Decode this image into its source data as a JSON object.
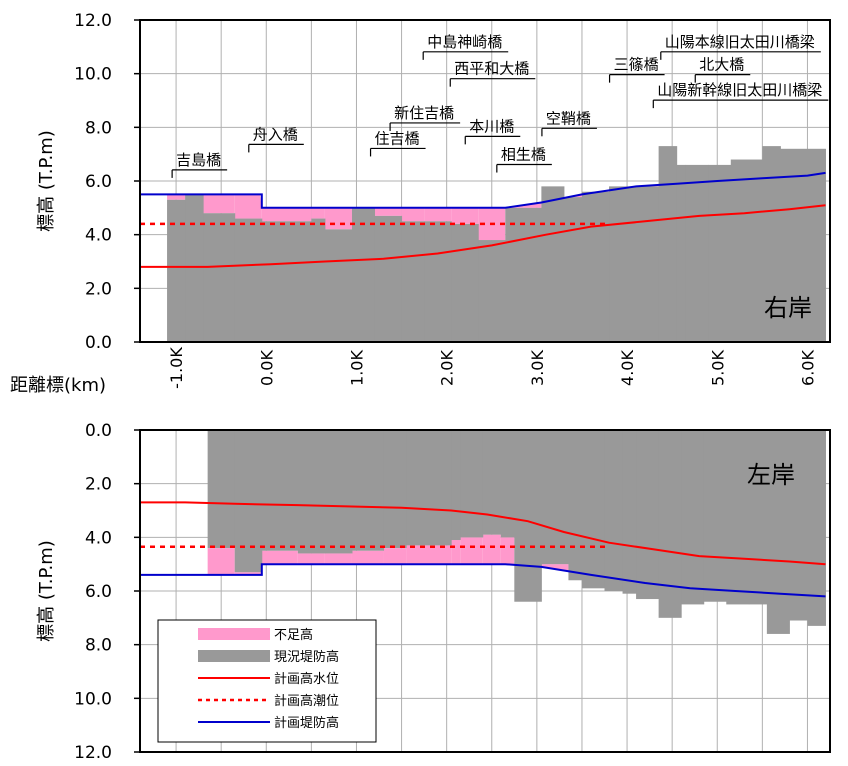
{
  "chart_data": [
    {
      "type": "area",
      "panel": "right",
      "bank_label": "右岸",
      "ylabel": "標高 (T.P.m)",
      "xlim": [
        -1.4,
        6.25
      ],
      "ylim": [
        0.0,
        12.0
      ],
      "yaxis_inverted": false,
      "yticks": [
        "0.0",
        "2.0",
        "4.0",
        "6.0",
        "8.0",
        "10.0",
        "12.0"
      ],
      "grid": true,
      "series": [
        {
          "name": "現況堤防高",
          "color": "#999999",
          "step_x": [
            -1.1,
            -0.9,
            -0.7,
            -0.35,
            -0.05,
            0.5,
            0.65,
            0.95,
            1.2,
            1.5,
            1.75,
            2.05,
            2.35,
            2.65,
            2.85,
            3.05,
            3.3,
            3.5,
            3.8,
            4.35,
            4.55,
            4.65,
            4.9,
            5.15,
            5.5,
            5.7,
            6.0,
            6.2
          ],
          "step_y": [
            5.3,
            5.5,
            4.8,
            4.6,
            4.5,
            4.6,
            4.2,
            5.0,
            4.7,
            4.5,
            4.5,
            4.4,
            3.8,
            5.0,
            5.0,
            5.8,
            5.4,
            5.6,
            5.8,
            7.3,
            6.6,
            6.6,
            6.6,
            6.8,
            7.3,
            7.2,
            7.2,
            7.2
          ]
        },
        {
          "name": "計画堤防高",
          "color": "#0000cc",
          "x": [
            -1.4,
            -0.05,
            -0.05,
            2.65,
            3.05,
            3.5,
            4.1,
            4.55,
            5.0,
            5.5,
            6.0,
            6.2
          ],
          "y": [
            5.5,
            5.5,
            5.0,
            5.0,
            5.2,
            5.5,
            5.8,
            5.9,
            6.0,
            6.1,
            6.2,
            6.3
          ]
        },
        {
          "name": "計画高水位",
          "color": "#ff0000",
          "x": [
            -1.4,
            -0.65,
            0.05,
            0.65,
            1.3,
            1.9,
            2.5,
            3.1,
            3.6,
            4.2,
            4.8,
            5.3,
            5.8,
            6.2
          ],
          "y": [
            2.8,
            2.8,
            2.9,
            3.0,
            3.1,
            3.3,
            3.6,
            4.0,
            4.3,
            4.5,
            4.7,
            4.8,
            4.95,
            5.1
          ]
        },
        {
          "name": "計画高潮位",
          "color": "#ff0000",
          "dashed": true,
          "x": [
            -1.4,
            3.8
          ],
          "y": [
            4.4,
            4.4
          ]
        }
      ],
      "annotations": [
        {
          "text": "吉島橋",
          "x": -0.75,
          "y": 6.6
        },
        {
          "text": "舟入橋",
          "x": 0.1,
          "y": 7.55
        },
        {
          "text": "住吉橋",
          "x": 1.45,
          "y": 7.4
        },
        {
          "text": "新住吉橋",
          "x": 1.75,
          "y": 8.35
        },
        {
          "text": "中島神崎橋",
          "x": 2.2,
          "y": 11.0
        },
        {
          "text": "西平和大橋",
          "x": 2.5,
          "y": 10.0
        },
        {
          "text": "本川橋",
          "x": 2.5,
          "y": 7.85
        },
        {
          "text": "相生橋",
          "x": 2.85,
          "y": 6.8
        },
        {
          "text": "空鞘橋",
          "x": 3.35,
          "y": 8.15
        },
        {
          "text": "山陽本線旧太田川橋梁",
          "x": 5.25,
          "y": 11.0
        },
        {
          "text": "三篠橋",
          "x": 4.1,
          "y": 10.15
        },
        {
          "text": "北大橋",
          "x": 5.05,
          "y": 10.15
        },
        {
          "text": "山陽新幹線旧太田川橋梁",
          "x": 5.25,
          "y": 9.2
        }
      ]
    },
    {
      "type": "area",
      "panel": "left",
      "bank_label": "左岸",
      "ylabel": "標高 (T.P.m)",
      "xlim": [
        -1.4,
        6.25
      ],
      "ylim": [
        0.0,
        12.0
      ],
      "yaxis_inverted": true,
      "yticks": [
        "0.0",
        "2.0",
        "4.0",
        "6.0",
        "8.0",
        "10.0",
        "12.0"
      ],
      "grid": true,
      "series": [
        {
          "name": "現況堤防高",
          "color": "#999999",
          "step_x": [
            -0.65,
            -0.35,
            -0.05,
            0.35,
            0.65,
            0.95,
            1.3,
            1.55,
            2.05,
            2.15,
            2.4,
            2.6,
            2.75,
            3.05,
            3.35,
            3.5,
            3.75,
            3.95,
            4.1,
            4.35,
            4.6,
            4.85,
            5.1,
            5.35,
            5.55,
            5.8,
            6.0,
            6.2
          ],
          "step_y": [
            4.4,
            5.3,
            4.5,
            4.6,
            4.6,
            4.5,
            4.4,
            4.3,
            4.1,
            4.0,
            3.9,
            4.0,
            6.4,
            5.0,
            5.6,
            5.9,
            6.0,
            6.1,
            6.3,
            7.0,
            6.5,
            6.4,
            6.5,
            6.5,
            7.6,
            7.1,
            7.3,
            7.5
          ]
        },
        {
          "name": "計画堤防高",
          "color": "#0000cc",
          "x": [
            -1.4,
            -0.05,
            -0.05,
            2.65,
            3.05,
            3.6,
            4.2,
            4.7,
            5.2,
            5.7,
            6.2
          ],
          "y": [
            5.4,
            5.4,
            5.0,
            5.0,
            5.1,
            5.4,
            5.7,
            5.9,
            6.0,
            6.1,
            6.2
          ]
        },
        {
          "name": "計画高水位",
          "color": "#ff0000",
          "x": [
            -1.4,
            -0.9,
            -0.35,
            0.35,
            0.95,
            1.5,
            2.05,
            2.45,
            2.9,
            3.3,
            3.8,
            4.3,
            4.8,
            5.3,
            5.8,
            6.2
          ],
          "y": [
            2.7,
            2.7,
            2.75,
            2.8,
            2.85,
            2.9,
            3.0,
            3.15,
            3.4,
            3.8,
            4.2,
            4.45,
            4.7,
            4.8,
            4.9,
            5.0
          ]
        },
        {
          "name": "計画高潮位",
          "color": "#ff0000",
          "dashed": true,
          "x": [
            -1.4,
            3.8
          ],
          "y": [
            4.35,
            4.35
          ]
        }
      ]
    }
  ],
  "xaxis": {
    "label": "距離標(km)",
    "ticks": [
      -1.0,
      0.0,
      1.0,
      2.0,
      3.0,
      4.0,
      5.0,
      6.0
    ],
    "tick_labels": [
      "-1.0K",
      "0.0K",
      "1.0K",
      "2.0K",
      "3.0K",
      "4.0K",
      "5.0K",
      "6.0K"
    ]
  },
  "legend": {
    "placement": "bottom-left of lower panel",
    "items": [
      {
        "label": "不足高",
        "kind": "fill",
        "color": "#ff99cc"
      },
      {
        "label": "現況堤防高",
        "kind": "fill",
        "color": "#999999"
      },
      {
        "label": "計画高水位",
        "kind": "line",
        "color": "#ff0000"
      },
      {
        "label": "計画高潮位",
        "kind": "dashed",
        "color": "#ff0000"
      },
      {
        "label": "計画堤防高",
        "kind": "line",
        "color": "#0000cc"
      }
    ]
  },
  "colors": {
    "deficit": "#ff99cc",
    "existing": "#999999",
    "plan_water": "#ff0000",
    "plan_levee": "#0000cc",
    "grid": "#b0b0b0"
  }
}
